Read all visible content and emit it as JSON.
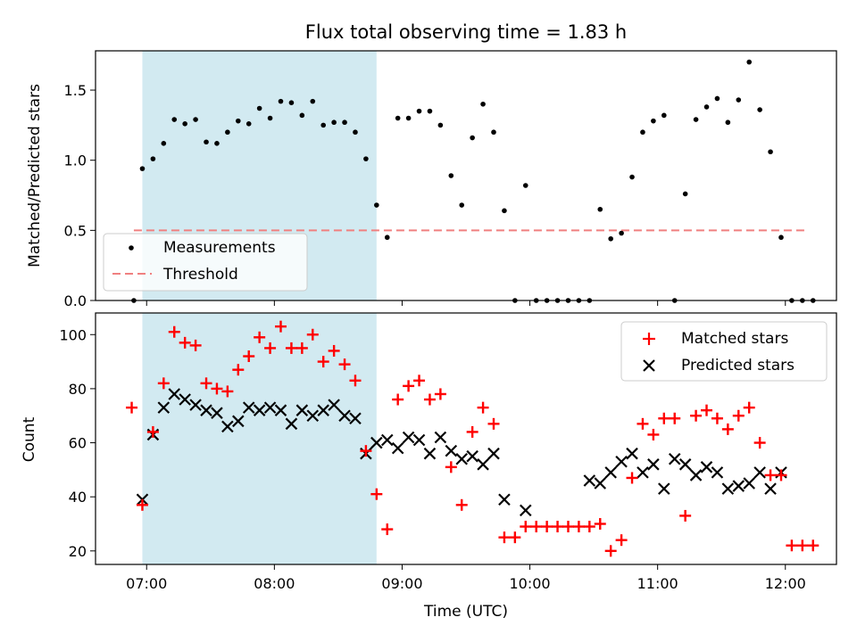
{
  "chart_data": [
    {
      "type": "scatter",
      "title": "Flux total observing time = 1.83 h",
      "xlabel": "",
      "ylabel": "Matched/Predicted stars",
      "ylim": [
        0,
        1.78
      ],
      "yticks": [
        "0.0",
        "0.5",
        "1.0",
        "1.5"
      ],
      "ytick_values": [
        0,
        0.5,
        1.0,
        1.5
      ],
      "legend": {
        "placement": "lower-left",
        "entries": [
          "Measurements",
          "Threshold"
        ]
      },
      "colors": {
        "measurements": "#000000",
        "threshold": "#f08080",
        "shade": "#add8e6"
      },
      "threshold": {
        "name": "Threshold",
        "y": 0.5,
        "x_range": [
          "06:54",
          "12:10"
        ]
      },
      "shaded_range": [
        "06:58",
        "08:48"
      ],
      "series": [
        {
          "name": "Measurements",
          "x": [
            "06:54",
            "06:58",
            "07:03",
            "07:08",
            "07:13",
            "07:18",
            "07:23",
            "07:28",
            "07:33",
            "07:38",
            "07:43",
            "07:48",
            "07:53",
            "07:58",
            "08:03",
            "08:08",
            "08:13",
            "08:18",
            "08:23",
            "08:28",
            "08:33",
            "08:38",
            "08:43",
            "08:48",
            "08:53",
            "08:58",
            "09:03",
            "09:08",
            "09:13",
            "09:18",
            "09:23",
            "09:28",
            "09:33",
            "09:38",
            "09:43",
            "09:48",
            "09:53",
            "09:58",
            "10:03",
            "10:08",
            "10:13",
            "10:18",
            "10:23",
            "10:28",
            "10:33",
            "10:38",
            "10:43",
            "10:48",
            "10:53",
            "10:58",
            "11:03",
            "11:08",
            "11:13",
            "11:18",
            "11:23",
            "11:28",
            "11:33",
            "11:38",
            "11:43",
            "11:48",
            "11:53",
            "11:58",
            "12:03",
            "12:08",
            "12:13"
          ],
          "y": [
            0.0,
            0.94,
            1.01,
            1.12,
            1.29,
            1.26,
            1.29,
            1.13,
            1.12,
            1.2,
            1.28,
            1.26,
            1.37,
            1.3,
            1.42,
            1.41,
            1.32,
            1.42,
            1.25,
            1.27,
            1.27,
            1.2,
            1.01,
            0.68,
            0.45,
            1.3,
            1.3,
            1.35,
            1.35,
            1.25,
            0.89,
            0.68,
            1.16,
            1.4,
            1.2,
            0.64,
            0.0,
            0.82,
            0.0,
            0.0,
            0.0,
            0.0,
            0.0,
            0.0,
            0.65,
            0.44,
            0.48,
            0.88,
            1.2,
            1.28,
            1.32,
            0.0,
            0.76,
            1.29,
            1.38,
            1.44,
            1.27,
            1.43,
            1.7,
            1.36,
            1.06,
            0.45,
            0.0,
            0.0,
            0.0
          ]
        }
      ]
    },
    {
      "type": "scatter",
      "title": "",
      "xlabel": "Time (UTC)",
      "ylabel": "Count",
      "ylim": [
        15,
        108
      ],
      "yticks": [
        "20",
        "40",
        "60",
        "80",
        "100"
      ],
      "ytick_values": [
        20,
        40,
        60,
        80,
        100
      ],
      "xlim": [
        "06:36",
        "12:24"
      ],
      "xticks": [
        "07:00",
        "08:00",
        "09:00",
        "10:00",
        "11:00",
        "12:00"
      ],
      "legend": {
        "placement": "upper-right",
        "entries": [
          "Matched stars",
          "Predicted stars"
        ]
      },
      "colors": {
        "matched": "#ff0000",
        "predicted": "#000000",
        "shade": "#add8e6"
      },
      "shaded_range": [
        "06:58",
        "08:48"
      ],
      "series": [
        {
          "name": "Matched stars",
          "marker": "plus",
          "x": [
            "06:53",
            "06:58",
            "07:03",
            "07:08",
            "07:13",
            "07:18",
            "07:23",
            "07:28",
            "07:33",
            "07:38",
            "07:43",
            "07:48",
            "07:53",
            "07:58",
            "08:03",
            "08:08",
            "08:13",
            "08:18",
            "08:23",
            "08:28",
            "08:33",
            "08:38",
            "08:43",
            "08:48",
            "08:53",
            "08:58",
            "09:03",
            "09:08",
            "09:13",
            "09:18",
            "09:23",
            "09:28",
            "09:33",
            "09:38",
            "09:43",
            "09:48",
            "09:53",
            "09:58",
            "10:03",
            "10:08",
            "10:13",
            "10:18",
            "10:23",
            "10:28",
            "10:33",
            "10:38",
            "10:43",
            "10:48",
            "10:53",
            "10:58",
            "11:03",
            "11:08",
            "11:13",
            "11:18",
            "11:23",
            "11:28",
            "11:33",
            "11:38",
            "11:43",
            "11:48",
            "11:53",
            "11:58",
            "12:03",
            "12:08",
            "12:13"
          ],
          "y": [
            73,
            37,
            64,
            82,
            101,
            97,
            96,
            82,
            80,
            79,
            87,
            92,
            99,
            95,
            103,
            95,
            95,
            100,
            90,
            94,
            89,
            83,
            57,
            41,
            28,
            76,
            81,
            83,
            76,
            78,
            51,
            37,
            64,
            73,
            67,
            25,
            25,
            29,
            29,
            29,
            29,
            29,
            29,
            29,
            30,
            20,
            24,
            47,
            67,
            63,
            69,
            69,
            33,
            70,
            72,
            69,
            65,
            70,
            73,
            60,
            48,
            48,
            22,
            22,
            22
          ]
        },
        {
          "name": "Predicted stars",
          "marker": "x",
          "x": [
            "06:58",
            "07:03",
            "07:08",
            "07:13",
            "07:18",
            "07:23",
            "07:28",
            "07:33",
            "07:38",
            "07:43",
            "07:48",
            "07:53",
            "07:58",
            "08:03",
            "08:08",
            "08:13",
            "08:18",
            "08:23",
            "08:28",
            "08:33",
            "08:38",
            "08:43",
            "08:48",
            "08:53",
            "08:58",
            "09:03",
            "09:08",
            "09:13",
            "09:18",
            "09:23",
            "09:28",
            "09:33",
            "09:38",
            "09:43",
            "09:48",
            "09:58",
            "10:28",
            "10:33",
            "10:38",
            "10:43",
            "10:48",
            "10:53",
            "10:58",
            "11:03",
            "11:08",
            "11:13",
            "11:18",
            "11:23",
            "11:28",
            "11:33",
            "11:38",
            "11:43",
            "11:48",
            "11:53",
            "11:58"
          ],
          "y": [
            39,
            63,
            73,
            78,
            76,
            74,
            72,
            71,
            66,
            68,
            73,
            72,
            73,
            72,
            67,
            72,
            70,
            72,
            74,
            70,
            69,
            56,
            60,
            61,
            58,
            62,
            61,
            56,
            62,
            57,
            54,
            55,
            52,
            56,
            39,
            35,
            46,
            45,
            49,
            53,
            56,
            49,
            52,
            43,
            54,
            52,
            48,
            51,
            49,
            43,
            44,
            45,
            49,
            43,
            49
          ]
        }
      ]
    }
  ]
}
